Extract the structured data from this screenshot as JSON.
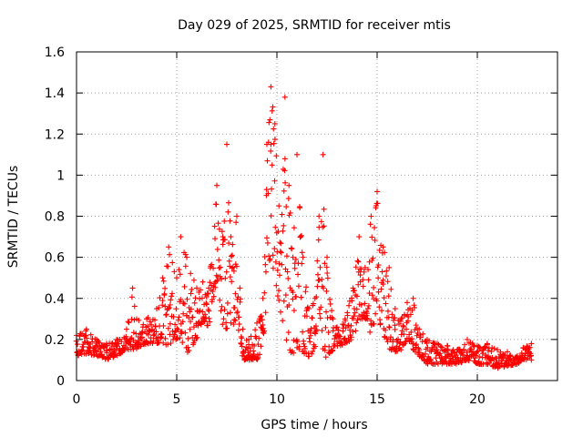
{
  "chart_data": {
    "type": "scatter",
    "title": "Day 029 of 2025, SRMTID for receiver mtis",
    "xlabel": "GPS time / hours",
    "ylabel": "SRMTID / TECUs",
    "xlim": [
      0,
      24
    ],
    "ylim": [
      0,
      1.6
    ],
    "xticks": [
      0,
      5,
      10,
      15,
      20
    ],
    "yticks": [
      0,
      0.2,
      0.4,
      0.6,
      0.8,
      1,
      1.2,
      1.4,
      1.6
    ],
    "xtick_labels": [
      "0",
      "5",
      "10",
      "15",
      "20"
    ],
    "ytick_labels": [
      "0",
      "0.2",
      "0.4",
      "0.6",
      "0.8",
      "1",
      "1.2",
      "1.4",
      "1.6"
    ],
    "grid": true,
    "marker": "+",
    "color": "#ff0000",
    "envelope": {
      "x": [
        0,
        0.5,
        1,
        1.5,
        2,
        2.5,
        2.8,
        3,
        3.5,
        4,
        4.3,
        4.6,
        5,
        5.2,
        5.5,
        6,
        6.3,
        6.6,
        7,
        7.3,
        7.5,
        7.7,
        8,
        8.3,
        8.6,
        9,
        9.3,
        9.5,
        9.7,
        9.9,
        10.1,
        10.4,
        10.6,
        10.8,
        11,
        11.3,
        11.6,
        11.9,
        12.1,
        12.3,
        12.5,
        12.8,
        13,
        13.4,
        13.8,
        14.1,
        14.4,
        14.7,
        15,
        15.3,
        15.6,
        15.9,
        16.2,
        16.5,
        16.8,
        17.1,
        17.5,
        18,
        18.5,
        19,
        19.5,
        20,
        20.5,
        21,
        21.5,
        22,
        22.3,
        22.7
      ],
      "y_low": [
        0.12,
        0.13,
        0.12,
        0.1,
        0.12,
        0.15,
        0.15,
        0.15,
        0.18,
        0.18,
        0.18,
        0.17,
        0.2,
        0.2,
        0.13,
        0.2,
        0.3,
        0.25,
        0.5,
        0.25,
        0.25,
        0.2,
        0.3,
        0.1,
        0.1,
        0.1,
        0.15,
        0.4,
        0.6,
        0.5,
        0.35,
        0.2,
        0.13,
        0.13,
        0.16,
        0.14,
        0.1,
        0.15,
        0.3,
        0.15,
        0.1,
        0.15,
        0.16,
        0.18,
        0.2,
        0.3,
        0.3,
        0.2,
        0.35,
        0.2,
        0.15,
        0.12,
        0.15,
        0.2,
        0.15,
        0.12,
        0.08,
        0.08,
        0.08,
        0.08,
        0.1,
        0.08,
        0.08,
        0.06,
        0.07,
        0.08,
        0.1,
        0.1
      ],
      "y_high": [
        0.22,
        0.25,
        0.2,
        0.18,
        0.2,
        0.25,
        0.45,
        0.3,
        0.3,
        0.35,
        0.5,
        0.65,
        0.5,
        0.7,
        0.6,
        0.45,
        0.48,
        0.45,
        0.95,
        0.7,
        1.15,
        0.7,
        0.8,
        0.25,
        0.2,
        0.28,
        0.4,
        1.15,
        1.43,
        1.25,
        0.85,
        1.38,
        0.95,
        0.6,
        1.1,
        0.6,
        0.35,
        0.4,
        0.8,
        1.1,
        0.6,
        0.3,
        0.26,
        0.3,
        0.45,
        0.7,
        0.55,
        0.8,
        0.92,
        0.65,
        0.55,
        0.35,
        0.3,
        0.38,
        0.4,
        0.25,
        0.2,
        0.18,
        0.17,
        0.15,
        0.2,
        0.17,
        0.18,
        0.15,
        0.14,
        0.12,
        0.16,
        0.18
      ]
    }
  }
}
